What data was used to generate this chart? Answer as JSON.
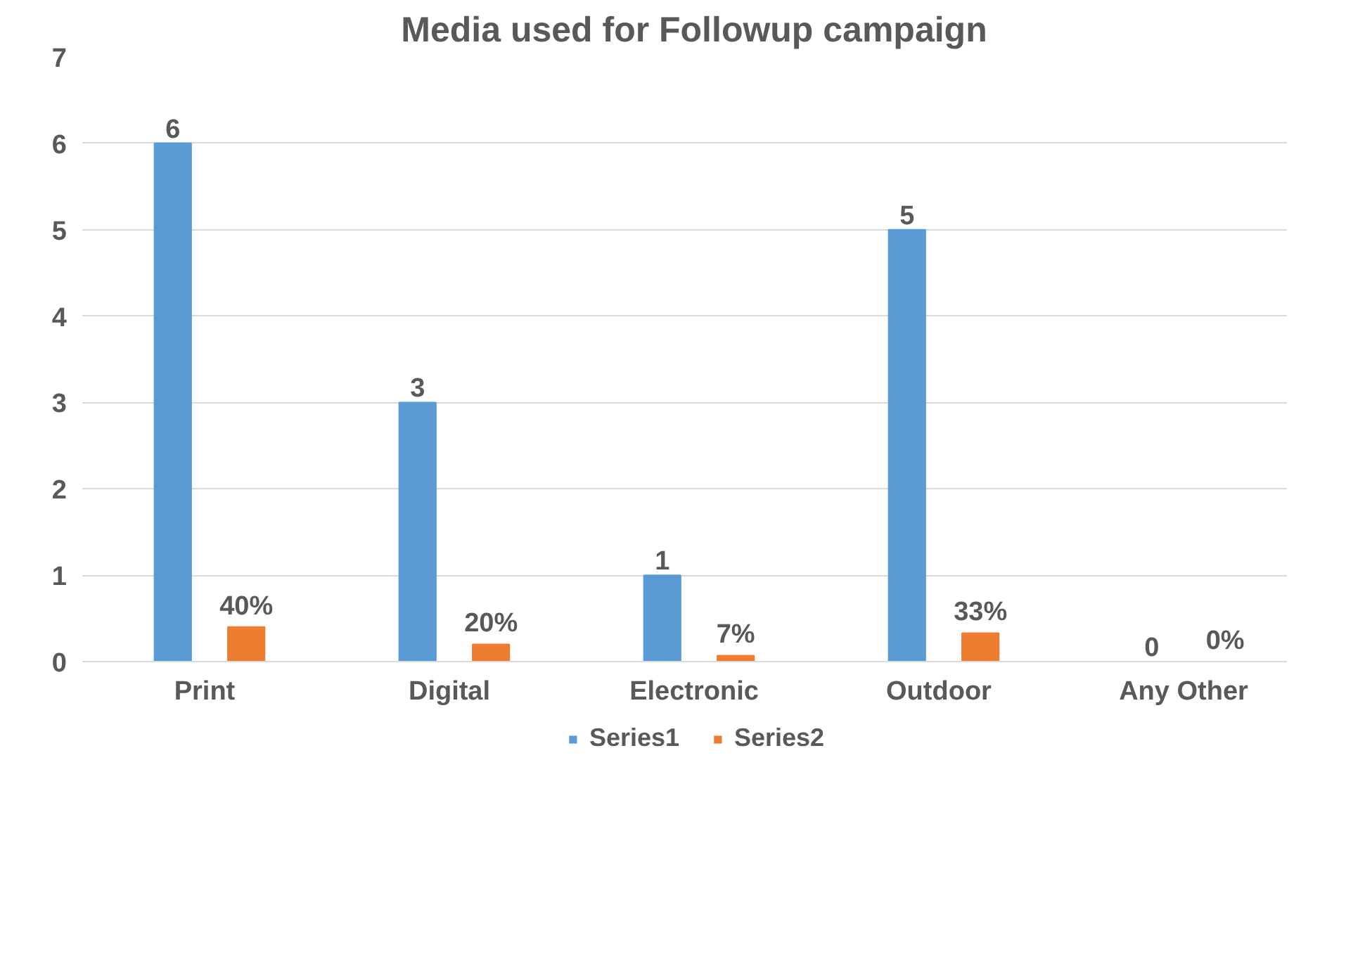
{
  "chart_data": {
    "type": "bar",
    "title": "Media used for Followup campaign",
    "categories": [
      "Print",
      "Digital",
      "Electronic",
      "Outdoor",
      "Any Other"
    ],
    "series": [
      {
        "name": "Series1",
        "color": "#5b9bd5",
        "values": [
          6,
          3,
          1,
          5,
          0
        ],
        "value_labels": [
          "6",
          "3",
          "1",
          "5",
          "0"
        ]
      },
      {
        "name": "Series2",
        "color": "#ed7d31",
        "values": [
          0.4,
          0.2,
          0.07,
          0.33,
          0
        ],
        "value_labels": [
          "40%",
          "20%",
          "7%",
          "33%",
          "0%"
        ]
      }
    ],
    "ylim": [
      0,
      7
    ],
    "yticks": [
      0,
      1,
      2,
      3,
      4,
      5,
      6,
      7
    ],
    "grid": "y",
    "legend": "bottom"
  }
}
